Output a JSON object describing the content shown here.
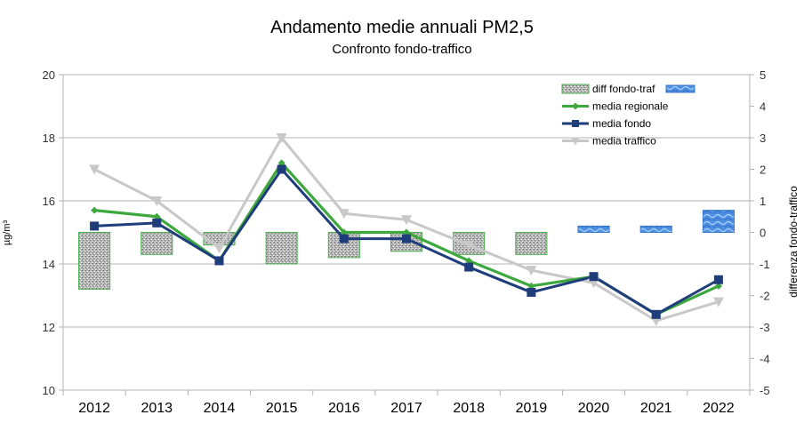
{
  "chart_data": {
    "type": "line",
    "title": "Andamento medie annuali PM2,5",
    "subtitle": "Confronto fondo-traffico",
    "ylabel": "µg/m³",
    "y2label": "differenza fondo-traffico",
    "ylim": [
      10,
      20
    ],
    "yticks": [
      10,
      12,
      14,
      16,
      18,
      20
    ],
    "y2lim": [
      -5,
      5
    ],
    "y2ticks": [
      -5,
      -4,
      -3,
      -2,
      -1,
      0,
      1,
      2,
      3,
      4,
      5
    ],
    "categories": [
      "2012",
      "2013",
      "2014",
      "2015",
      "2016",
      "2017",
      "2018",
      "2019",
      "2020",
      "2021",
      "2022"
    ],
    "series": [
      {
        "name": "diff fondo-traf",
        "type": "bar",
        "axis": "right",
        "values": [
          -1.8,
          -0.7,
          -0.4,
          -1.0,
          -0.8,
          -0.6,
          -0.7,
          -0.7,
          0.2,
          0.2,
          0.7
        ]
      },
      {
        "name": "media regionale",
        "type": "line",
        "axis": "left",
        "color": "#3da83d",
        "marker": "diamond",
        "values": [
          15.7,
          15.5,
          14.1,
          17.2,
          15.0,
          15.0,
          14.1,
          13.3,
          13.6,
          12.4,
          13.3
        ]
      },
      {
        "name": "media fondo",
        "type": "line",
        "axis": "left",
        "color": "#1f3d7a",
        "marker": "square",
        "values": [
          15.2,
          15.3,
          14.1,
          17.0,
          14.8,
          14.8,
          13.9,
          13.1,
          13.6,
          12.4,
          13.5
        ]
      },
      {
        "name": "media traffico",
        "type": "line",
        "axis": "left",
        "color": "#c8c8c8",
        "marker": "triangle-down",
        "values": [
          17.0,
          16.0,
          14.5,
          18.0,
          15.6,
          15.4,
          14.6,
          13.8,
          13.4,
          12.2,
          12.8
        ]
      }
    ],
    "legend_position": "top-right",
    "grid": true
  }
}
